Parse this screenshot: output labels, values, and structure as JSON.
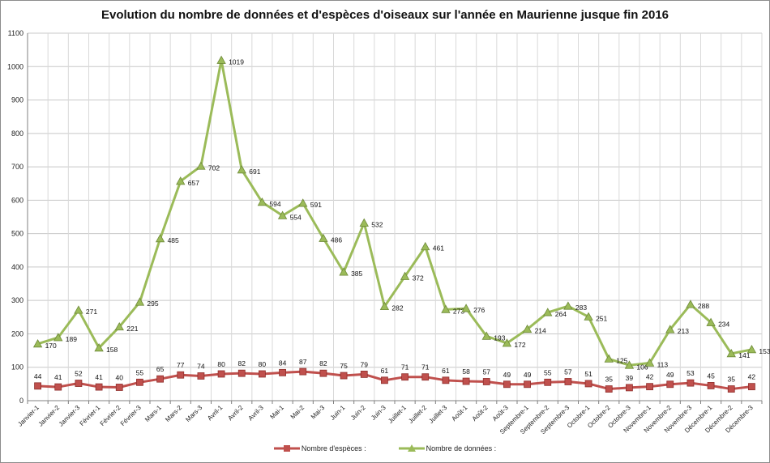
{
  "chart_data": {
    "type": "line",
    "title": "Evolution du nombre de données et d'espèces d'oiseaux sur l'année en Maurienne jusque fin 2016",
    "xlabel": "",
    "ylabel": "",
    "ylim": [
      0,
      1100
    ],
    "yticks": [
      0,
      100,
      200,
      300,
      400,
      500,
      600,
      700,
      800,
      900,
      1000,
      1100
    ],
    "grid": true,
    "legend_position": "bottom",
    "categories": [
      "Janvier-1",
      "Janvier-2",
      "Janvier-3",
      "Février-1",
      "Février-2",
      "Février-3",
      "Mars-1",
      "Mars-2",
      "Mars-3",
      "Avril-1",
      "Avril-2",
      "Avril-3",
      "Mai-1",
      "Mai-2",
      "Mai-3",
      "Juin-1",
      "Juin-2",
      "Juin-3",
      "Juillet-1",
      "Juillet-2",
      "Juillet-3",
      "Août-1",
      "Août-2",
      "Août-3",
      "Septembre-1",
      "Septembre-2",
      "Septembre-3",
      "Octobre-1",
      "Octobre-2",
      "Octobre-3",
      "Novembre-1",
      "Novembre-2",
      "Novembre-3",
      "Décembre-1",
      "Décembre-2",
      "Décembre-3"
    ],
    "series": [
      {
        "name": "Nombre d'espèces :",
        "color": "#c0504d",
        "marker": "square",
        "values": [
          44,
          41,
          52,
          41,
          40,
          55,
          65,
          77,
          74,
          80,
          82,
          80,
          84,
          87,
          82,
          75,
          79,
          61,
          71,
          71,
          61,
          58,
          57,
          49,
          49,
          55,
          57,
          51,
          35,
          39,
          42,
          49,
          53,
          45,
          35,
          42
        ]
      },
      {
        "name": "Nombre de données :",
        "color": "#9bbb59",
        "marker": "triangle",
        "values": [
          170,
          189,
          271,
          158,
          221,
          295,
          485,
          657,
          702,
          1019,
          691,
          594,
          554,
          591,
          486,
          385,
          532,
          282,
          372,
          461,
          273,
          276,
          193,
          172,
          214,
          264,
          283,
          251,
          125,
          106,
          113,
          213,
          288,
          234,
          141,
          153
        ]
      }
    ]
  }
}
